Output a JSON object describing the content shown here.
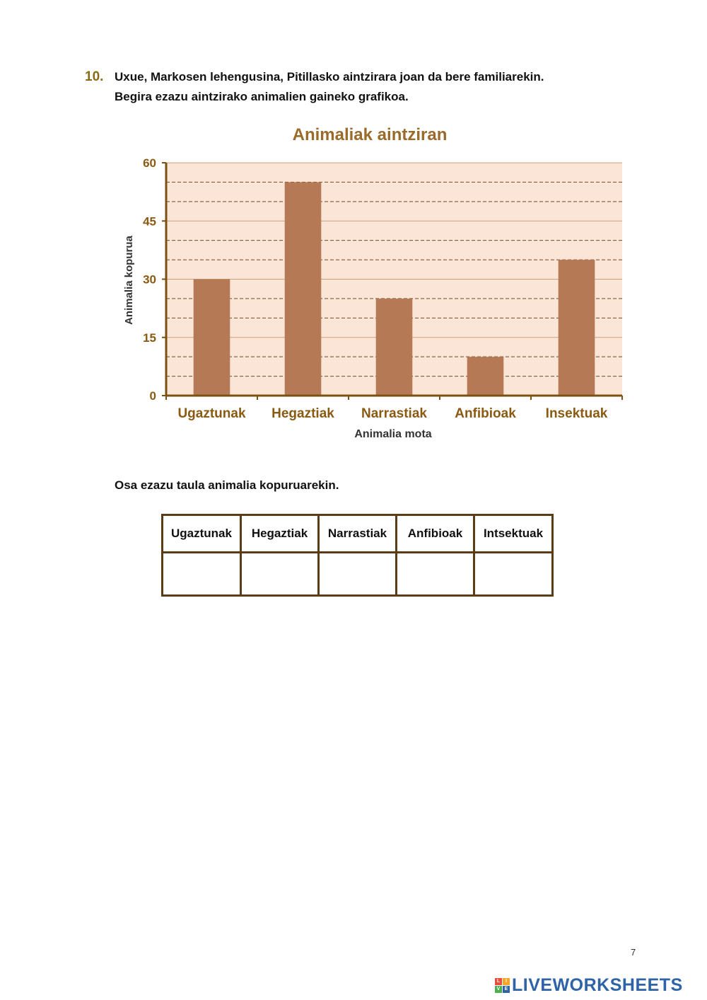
{
  "question": {
    "number": "10.",
    "line1": "Uxue, Markosen lehengusina, Pitillasko aintzirara joan da bere familiarekin.",
    "line2": "Begira ezazu aintzirako animalien gaineko grafikoa."
  },
  "chart_data": {
    "type": "bar",
    "title": "Animaliak aintziran",
    "xlabel": "Animalia mota",
    "ylabel": "Animalia kopurua",
    "categories": [
      "Ugaztunak",
      "Hegaztiak",
      "Narrastiak",
      "Anfibioak",
      "Insektuak"
    ],
    "values": [
      30,
      55,
      25,
      10,
      35
    ],
    "ylim": [
      0,
      60
    ],
    "yticks": [
      0,
      15,
      30,
      45,
      60
    ],
    "grid": true,
    "colors": {
      "bar": "#b57a55",
      "background": "#fbe5d6",
      "axis": "#7a5113",
      "text": "#8a5a12"
    }
  },
  "instruction": "Osa ezazu taula animalia kopuruarekin.",
  "table": {
    "headers": [
      "Ugaztunak",
      "Hegaztiak",
      "Narrastiak",
      "Anfibioak",
      "Intsektuak"
    ],
    "answers": [
      "",
      "",
      "",
      "",
      ""
    ]
  },
  "footer": {
    "page_number": "7",
    "brand": "LIVEWORKSHEETS",
    "brand_icon_letters": [
      "L",
      "I",
      "V",
      "E"
    ]
  }
}
